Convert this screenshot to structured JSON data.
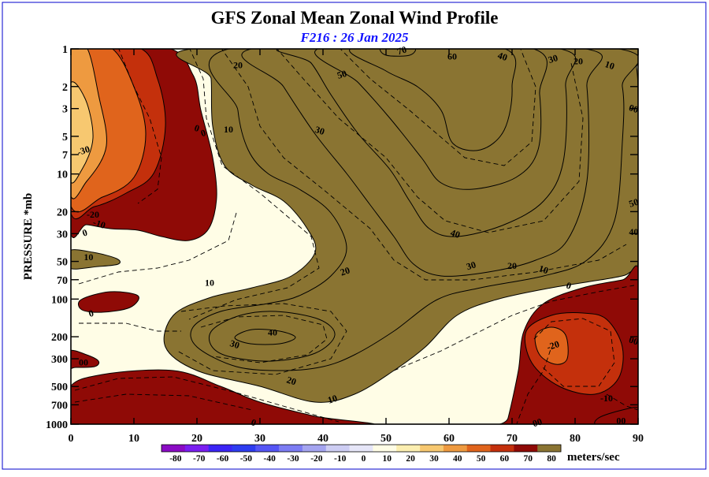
{
  "chart_data": {
    "type": "contour",
    "title": "GFS Zonal Mean Zonal Wind Profile",
    "subtitle": "F216 : 26 Jan 2025",
    "ylabel": "PRESSURE *mb",
    "xlabel": "",
    "x_ticks": [
      0,
      10,
      20,
      30,
      40,
      50,
      60,
      70,
      80,
      90
    ],
    "xlim": [
      0,
      90
    ],
    "y_scale": "log",
    "y_reversed": true,
    "ylim": [
      1000,
      1
    ],
    "y_ticks": [
      1,
      2,
      3,
      5,
      7,
      10,
      20,
      30,
      50,
      70,
      100,
      200,
      300,
      500,
      700,
      1000
    ],
    "y_tick_labels": [
      "1",
      "2",
      "3",
      "5",
      "7",
      "10",
      "20",
      "30",
      "50",
      "70",
      "100",
      "200",
      "300",
      "500",
      "700",
      "1000"
    ],
    "colorbar": {
      "unit_label": "meters/sec",
      "ticks": [
        "-80",
        "-70",
        "-60",
        "-50",
        "-40",
        "-30",
        "-20",
        "-10",
        "0",
        "10",
        "20",
        "30",
        "40",
        "50",
        "60",
        "70",
        "80"
      ],
      "colors": [
        "#8a0bc4",
        "#7a1ef0",
        "#3b24f5",
        "#2d3cf0",
        "#5555f5",
        "#7c7cf3",
        "#a4a4f0",
        "#cdcdf3",
        "#e6e6f8",
        "#fffde6",
        "#fbeeb0",
        "#f7c870",
        "#ee9a40",
        "#e0641c",
        "#c4300c",
        "#8f0a06",
        "#8a7432"
      ]
    },
    "wind_field_core": [
      {
        "lat": 0,
        "p": 3,
        "u": -40
      },
      {
        "lat": 2,
        "p": 30,
        "u": -10
      },
      {
        "lat": 7,
        "p": 50,
        "u": 10
      },
      {
        "lat": 7,
        "p": 120,
        "u": -2
      },
      {
        "lat": 2,
        "p": 280,
        "u": 0
      },
      {
        "lat": 30,
        "p": 10,
        "u": 5
      },
      {
        "lat": 33,
        "p": 200,
        "u": 42
      },
      {
        "lat": 52,
        "p": 1,
        "u": 72
      },
      {
        "lat": 60,
        "p": 4,
        "u": 66
      },
      {
        "lat": 62,
        "p": 25,
        "u": 45
      },
      {
        "lat": 60,
        "p": 200,
        "u": 10
      },
      {
        "lat": 52,
        "p": 600,
        "u": 5
      },
      {
        "lat": 76,
        "p": 200,
        "u": -22
      },
      {
        "lat": 85,
        "p": 150,
        "u": -10
      },
      {
        "lat": 89,
        "p": 3,
        "u": 5
      },
      {
        "lat": 89,
        "p": 30,
        "u": 12
      },
      {
        "lat": 82,
        "p": 700,
        "u": -8
      }
    ],
    "contour_labels": [
      {
        "text": "70",
        "lat": 52.5,
        "p": 1.03
      },
      {
        "text": "60",
        "lat": 60.5,
        "p": 1.15
      },
      {
        "text": "40",
        "lat": 68.5,
        "p": 1.15
      },
      {
        "text": "30",
        "lat": 76.5,
        "p": 1.2
      },
      {
        "text": "20",
        "lat": 80.5,
        "p": 1.25
      },
      {
        "text": "10",
        "lat": 85.5,
        "p": 1.35
      },
      {
        "text": "50",
        "lat": 43,
        "p": 1.6
      },
      {
        "text": "20",
        "lat": 26.5,
        "p": 1.35
      },
      {
        "text": "0",
        "lat": 20,
        "p": 4.3
      },
      {
        "text": "0",
        "lat": 21,
        "p": 4.7
      },
      {
        "text": "10",
        "lat": 25,
        "p": 4.4
      },
      {
        "text": "30",
        "lat": 39.5,
        "p": 4.5
      },
      {
        "text": "-30",
        "lat": 2,
        "p": 6.5
      },
      {
        "text": "-20",
        "lat": 3.5,
        "p": 21
      },
      {
        "text": "-10",
        "lat": 4.5,
        "p": 25
      },
      {
        "text": "0",
        "lat": 2.2,
        "p": 29.5
      },
      {
        "text": "10",
        "lat": 2.8,
        "p": 46
      },
      {
        "text": "40",
        "lat": 61,
        "p": 30
      },
      {
        "text": "30",
        "lat": 63.5,
        "p": 54
      },
      {
        "text": "20",
        "lat": 70,
        "p": 54
      },
      {
        "text": "10",
        "lat": 75,
        "p": 58
      },
      {
        "text": "20",
        "lat": 43.5,
        "p": 60
      },
      {
        "text": "10",
        "lat": 22,
        "p": 74
      },
      {
        "text": "0",
        "lat": 79,
        "p": 78
      },
      {
        "text": "0",
        "lat": 3.2,
        "p": 130
      },
      {
        "text": "40",
        "lat": 32,
        "p": 185
      },
      {
        "text": "30",
        "lat": 26,
        "p": 230
      },
      {
        "text": "-20",
        "lat": 76.5,
        "p": 235
      },
      {
        "text": "00",
        "lat": 2,
        "p": 320
      },
      {
        "text": "20",
        "lat": 35,
        "p": 450
      },
      {
        "text": "10",
        "lat": 41.5,
        "p": 630
      },
      {
        "text": "-10",
        "lat": 85,
        "p": 620
      },
      {
        "text": "0",
        "lat": 29,
        "p": 970
      },
      {
        "text": "00",
        "lat": 74,
        "p": 970
      },
      {
        "text": "00",
        "lat": 87.3,
        "p": 940
      },
      {
        "text": "00",
        "lat": 89.3,
        "p": 3
      },
      {
        "text": "50",
        "lat": 89.3,
        "p": 17
      },
      {
        "text": "40",
        "lat": 89.3,
        "p": 29
      },
      {
        "text": "00",
        "lat": 89.3,
        "p": 215
      }
    ],
    "grid": false,
    "legend": "colorbar-bottom"
  }
}
